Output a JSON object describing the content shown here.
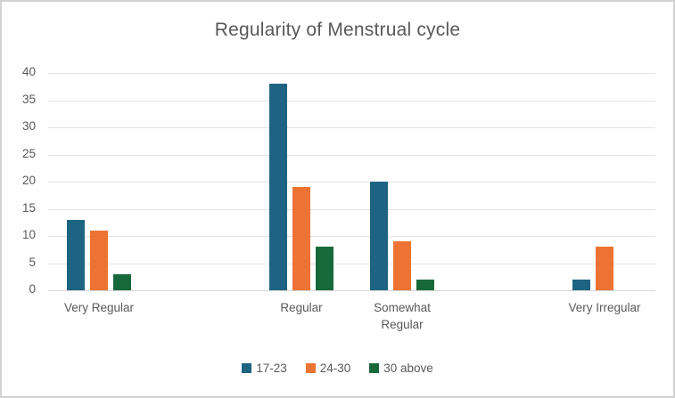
{
  "chart": {
    "title": "Regularity of Menstrual cycle"
  },
  "chart_data": {
    "type": "bar",
    "title": "Regularity of Menstrual cycle",
    "categories": [
      "Very Regular",
      "Regular",
      "Somewhat Regular",
      "Very Irregular"
    ],
    "series": [
      {
        "name": "17-23",
        "color": "#1F6383",
        "values": [
          13,
          38,
          20,
          2
        ]
      },
      {
        "name": "24-30",
        "color": "#EC7333",
        "values": [
          11,
          19,
          9,
          8
        ]
      },
      {
        "name": "30 above",
        "color": "#17693B",
        "values": [
          3,
          8,
          2,
          0
        ]
      }
    ],
    "xlabel": "",
    "ylabel": "",
    "ylim": [
      0,
      40
    ],
    "y_tick_step": 5,
    "y_ticks": [
      0,
      5,
      10,
      15,
      20,
      25,
      30,
      35,
      40
    ],
    "grid": true,
    "legend_position": "bottom",
    "category_slot_indices": [
      0,
      2,
      3,
      5
    ],
    "total_slots": 6,
    "colors": {
      "text": "#595959",
      "gridline": "#E3E3E3",
      "axis_line": "#D6D6D6"
    }
  }
}
